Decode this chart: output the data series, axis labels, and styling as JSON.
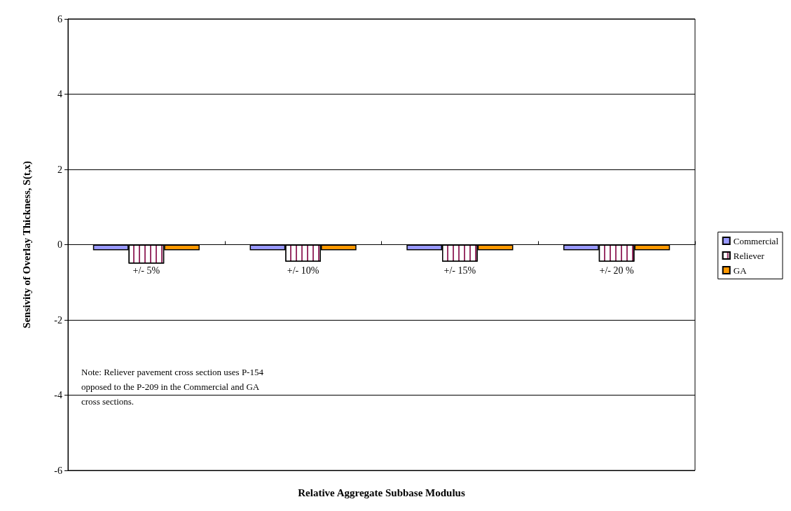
{
  "chart_data": {
    "type": "bar",
    "xlabel": "Relative Aggregate Subbase Modulus",
    "ylabel": "Sensivity of Overlay Thickness, S(t,x)",
    "categories": [
      "+/- 5%",
      "+/- 10%",
      "+/- 15%",
      "+/- 20 %"
    ],
    "series": [
      {
        "name": "Commercial",
        "color": "#9999ff",
        "values": [
          -0.15,
          -0.15,
          -0.15,
          -0.15
        ]
      },
      {
        "name": "Reliever",
        "color": "#993366",
        "values": [
          -0.5,
          -0.45,
          -0.45,
          -0.45
        ]
      },
      {
        "name": "GA",
        "color": "#ff9900",
        "values": [
          -0.15,
          -0.15,
          -0.15,
          -0.15
        ]
      }
    ],
    "ylim": [
      -6,
      6
    ],
    "yticks": [
      -6,
      -4,
      -2,
      0,
      2,
      4,
      6
    ],
    "grid": "y",
    "legend": "right",
    "annotations": [
      "Note: Reliever pavement cross section uses P-154\nopposed to the P-209 in the Commercial and GA\ncross sections."
    ]
  }
}
